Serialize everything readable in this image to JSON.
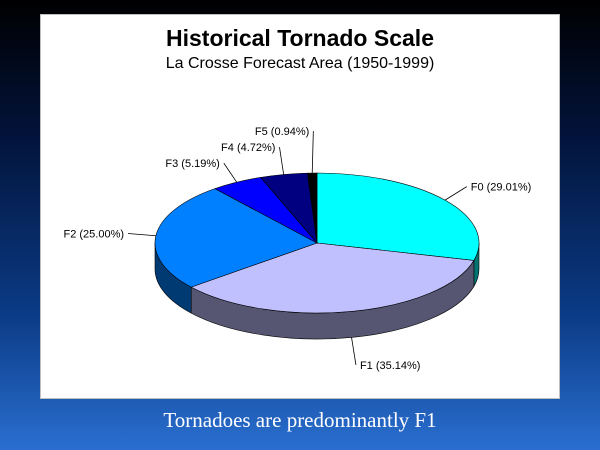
{
  "slide": {
    "caption": "Tornadoes are predominantly F1",
    "background": [
      "#000000",
      "#2a6fd0"
    ]
  },
  "chart_data": {
    "type": "pie",
    "title": "Historical Tornado Scale",
    "subtitle": "La Crosse Forecast Area  (1950-1999)",
    "three_d": true,
    "slices": [
      {
        "category": "F0",
        "value": 29.01,
        "label": "F0 (29.01%)",
        "color": "#00ffff"
      },
      {
        "category": "F1",
        "value": 35.14,
        "label": "F1 (35.14%)",
        "color": "#c0c0ff"
      },
      {
        "category": "F2",
        "value": 25.0,
        "label": "F2 (25.00%)",
        "color": "#0080ff"
      },
      {
        "category": "F3",
        "value": 5.19,
        "label": "F3 (5.19%)",
        "color": "#0000ff"
      },
      {
        "category": "F4",
        "value": 4.72,
        "label": "F4 (4.72%)",
        "color": "#000080"
      },
      {
        "category": "F5",
        "value": 0.94,
        "label": "F5 (0.94%)",
        "color": "#000000"
      }
    ]
  }
}
